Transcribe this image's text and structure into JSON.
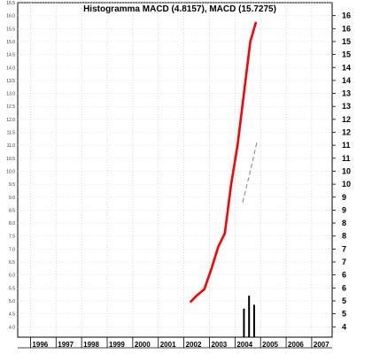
{
  "chart_data": {
    "type": "line",
    "title": "Histogramma MACD (4.8157), MACD (15.7275)",
    "xlabel": "",
    "ylabel": "",
    "x_ticks": [
      "1996",
      "1997",
      "1998",
      "1999",
      "2000",
      "2001",
      "2002",
      "2003",
      "2004",
      "2005",
      "2006",
      "2007"
    ],
    "xlim": [
      1995.5,
      2007.8
    ],
    "ylim": [
      3.6,
      16.5
    ],
    "left_ticks": [
      "4.0",
      "4.5",
      "5.0",
      "5.5",
      "6.0",
      "6.5",
      "7.0",
      "7.5",
      "8.0",
      "8.5",
      "9.0",
      "9.5",
      "10.0",
      "10.5",
      "11.0",
      "11.5",
      "12.0",
      "12.5",
      "13.0",
      "13.5",
      "14.0",
      "14.5",
      "15.0",
      "15.5",
      "16.0",
      "16.5"
    ],
    "right_ticks": [
      "4",
      "5",
      "5",
      "6",
      "6",
      "7",
      "7",
      "8",
      "8",
      "9",
      "9",
      "10",
      "10",
      "11",
      "11",
      "12",
      "12",
      "13",
      "13",
      "14",
      "14",
      "15",
      "15",
      "16",
      "16"
    ],
    "grid": true,
    "series": [
      {
        "kind": "line",
        "color": "#ff0000",
        "style": "solid",
        "points": [
          [
            2002.25,
            4.95
          ],
          [
            2002.5,
            5.2
          ],
          [
            2002.8,
            5.45
          ],
          [
            2003.1,
            6.3
          ],
          [
            2003.35,
            7.1
          ],
          [
            2003.6,
            7.6
          ],
          [
            2003.85,
            9.5
          ],
          [
            2004.1,
            11.0
          ],
          [
            2004.35,
            13.0
          ],
          [
            2004.6,
            15.0
          ],
          [
            2004.82,
            15.75
          ]
        ]
      },
      {
        "kind": "line",
        "color": "#808080",
        "style": "dashed",
        "points": [
          [
            2004.3,
            8.8
          ],
          [
            2004.6,
            10.0
          ],
          [
            2004.85,
            11.1
          ]
        ]
      },
      {
        "kind": "bar",
        "color": "#000000",
        "base": 3.6,
        "points": [
          [
            2004.35,
            4.7
          ],
          [
            2004.55,
            5.2
          ],
          [
            2004.75,
            4.85
          ]
        ]
      }
    ]
  }
}
